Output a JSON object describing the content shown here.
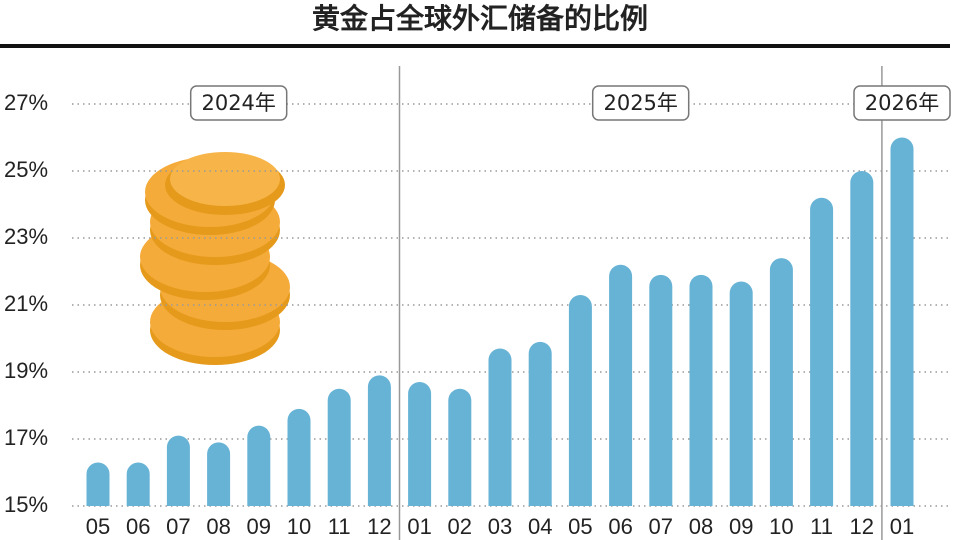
{
  "chart_data": {
    "type": "bar",
    "title": "黄金占全球外汇储备的比例",
    "categories": [
      "05",
      "06",
      "07",
      "08",
      "09",
      "10",
      "11",
      "12",
      "01",
      "02",
      "03",
      "04",
      "05",
      "06",
      "07",
      "08",
      "09",
      "10",
      "11",
      "12",
      "01"
    ],
    "values": [
      16.3,
      16.3,
      17.1,
      16.9,
      17.4,
      17.9,
      18.5,
      18.9,
      18.7,
      18.5,
      19.7,
      19.9,
      21.3,
      22.2,
      21.9,
      21.9,
      21.7,
      22.4,
      24.2,
      25.0,
      26.0
    ],
    "year_labels": [
      "2024年",
      "2025年",
      "2026年"
    ],
    "color": "#66b3d6",
    "ylim": [
      15,
      28
    ],
    "yticks": [
      {
        "value": 15,
        "label": "15%"
      },
      {
        "value": 17,
        "label": "17%"
      },
      {
        "value": 19,
        "label": "19%"
      },
      {
        "value": 21,
        "label": "21%"
      },
      {
        "value": 23,
        "label": "23%"
      },
      {
        "value": 25,
        "label": "25%"
      },
      {
        "value": 27,
        "label": "27%"
      }
    ],
    "grid": true
  }
}
